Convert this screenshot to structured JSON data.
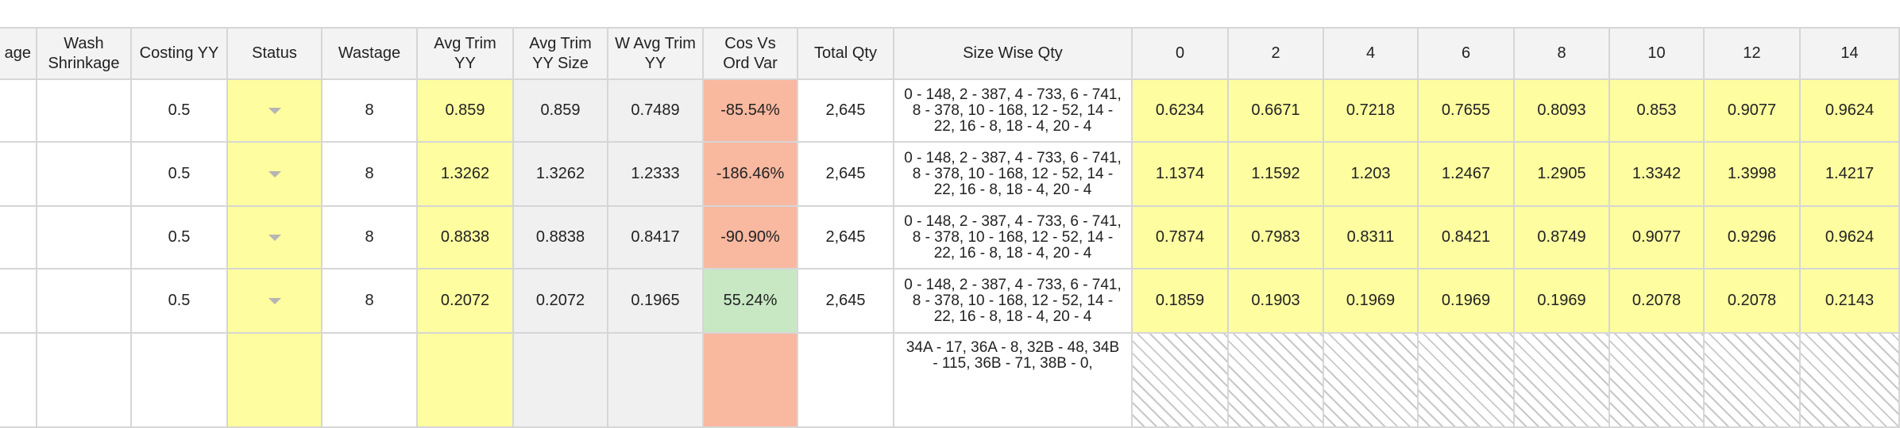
{
  "table": {
    "headers": [
      "nal age",
      "Wash Shrinkage",
      "Costing YY",
      "Status",
      "Wastage",
      "Avg Trim YY",
      "Avg Trim YY Size",
      "W Avg Trim YY",
      "Cos Vs Ord Var",
      "Total Qty",
      "Size Wise Qty",
      "0",
      "2",
      "4",
      "6",
      "8",
      "10",
      "12",
      "14"
    ],
    "rows": [
      [
        "",
        "",
        "0.5",
        "",
        "8",
        "0.859",
        "0.859",
        "0.7489",
        "-85.54%",
        "2,645",
        "0 - 148, 2 - 387, 4 - 733, 6 - 741, 8 - 378, 10 - 168, 12 - 52, 14 - 22, 16 - 8, 18 - 4, 20 - 4",
        "0.6234",
        "0.6671",
        "0.7218",
        "0.7655",
        "0.8093",
        "0.853",
        "0.9077",
        "0.9624"
      ],
      [
        "",
        "",
        "0.5",
        "",
        "8",
        "1.3262",
        "1.3262",
        "1.2333",
        "-186.46%",
        "2,645",
        "0 - 148, 2 - 387, 4 - 733, 6 - 741, 8 - 378, 10 - 168, 12 - 52, 14 - 22, 16 - 8, 18 - 4, 20 - 4",
        "1.1374",
        "1.1592",
        "1.203",
        "1.2467",
        "1.2905",
        "1.3342",
        "1.3998",
        "1.4217"
      ],
      [
        "",
        "",
        "0.5",
        "",
        "8",
        "0.8838",
        "0.8838",
        "0.8417",
        "-90.90%",
        "2,645",
        "0 - 148, 2 - 387, 4 - 733, 6 - 741, 8 - 378, 10 - 168, 12 - 52, 14 - 22, 16 - 8, 18 - 4, 20 - 4",
        "0.7874",
        "0.7983",
        "0.8311",
        "0.8421",
        "0.8749",
        "0.9077",
        "0.9296",
        "0.9624"
      ],
      [
        "",
        "",
        "0.5",
        "",
        "8",
        "0.2072",
        "0.2072",
        "0.1965",
        "55.24%",
        "2,645",
        "0 - 148, 2 - 387, 4 - 733, 6 - 741, 8 - 378, 10 - 168, 12 - 52, 14 - 22, 16 - 8, 18 - 4, 20 - 4",
        "0.1859",
        "0.1903",
        "0.1969",
        "0.1969",
        "0.1969",
        "0.2078",
        "0.2078",
        "0.2143"
      ],
      [
        "",
        "",
        "",
        "",
        "",
        "",
        "",
        "",
        "",
        "",
        "34A - 17, 36A - 8, 32B - 48, 34B - 115, 36B - 71, 38B - 0,",
        "",
        "",
        "",
        "",
        "",
        "",
        "",
        ""
      ]
    ]
  }
}
